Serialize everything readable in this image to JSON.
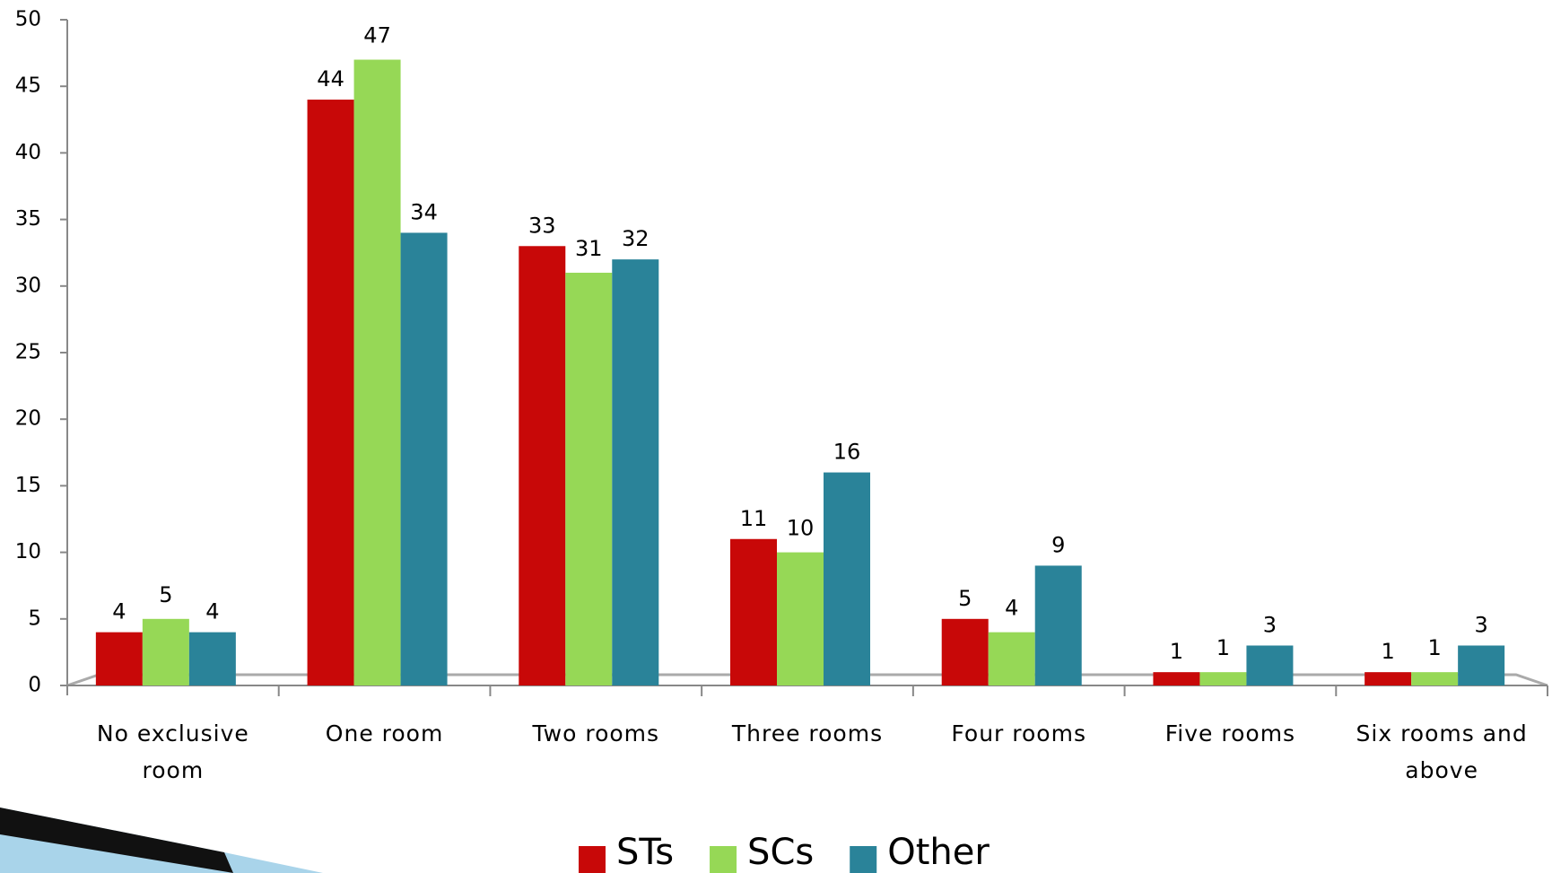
{
  "chart_data": {
    "type": "bar",
    "categories": [
      "No exclusive room",
      "One room",
      "Two rooms",
      "Three rooms",
      "Four rooms",
      "Five rooms",
      "Six rooms and above"
    ],
    "series": [
      {
        "name": "STs",
        "color": "#c80808",
        "values": [
          4,
          44,
          33,
          11,
          5,
          1,
          1
        ]
      },
      {
        "name": "SCs",
        "color": "#96d856",
        "values": [
          5,
          47,
          31,
          10,
          4,
          1,
          1
        ]
      },
      {
        "name": "Other",
        "color": "#2a8399",
        "values": [
          4,
          34,
          32,
          16,
          9,
          3,
          3
        ]
      }
    ],
    "ylim": [
      0,
      50
    ],
    "yticks": [
      0,
      5,
      10,
      15,
      20,
      25,
      30,
      35,
      40,
      45,
      50
    ]
  }
}
